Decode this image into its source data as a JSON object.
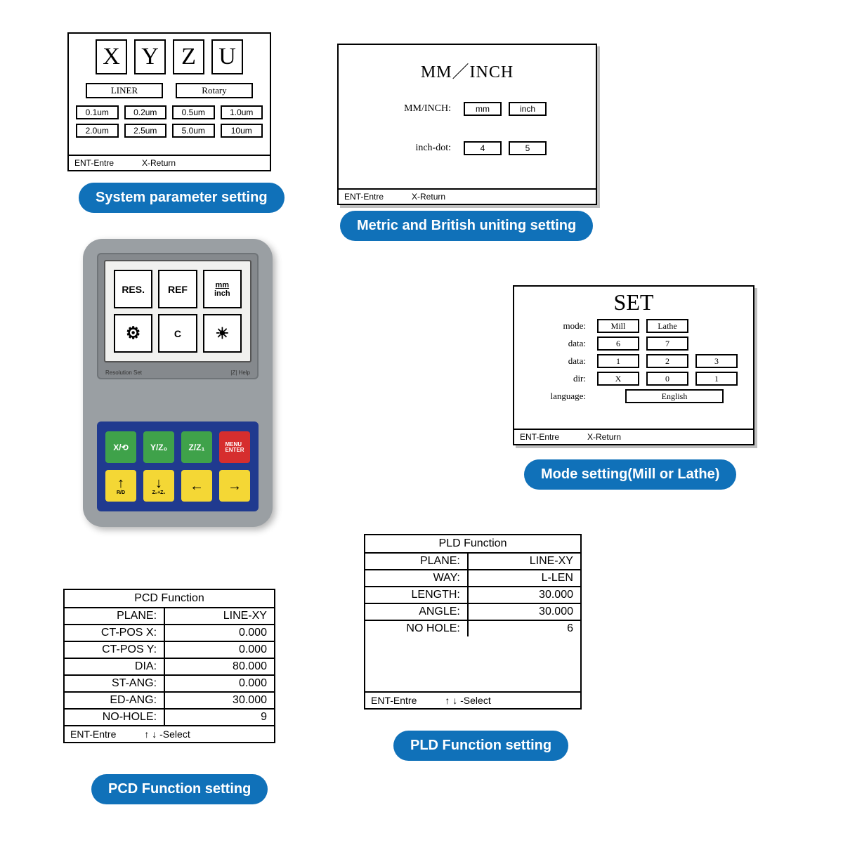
{
  "colors": {
    "caption_bg": "#1071b9",
    "caption_fg": "#ffffff"
  },
  "panel1": {
    "axes": [
      "X",
      "Y",
      "Z",
      "U"
    ],
    "types": [
      "LINER",
      "Rotary"
    ],
    "resolutions": [
      "0.1um",
      "0.2um",
      "0.5um",
      "1.0um",
      "2.0um",
      "2.5um",
      "5.0um",
      "10um"
    ],
    "footer_left": "ENT-Entre",
    "footer_right": "X-Return",
    "caption": "System parameter setting"
  },
  "panel2": {
    "title": "MM／INCH",
    "row1_label": "MM/INCH:",
    "row1_opts": [
      "mm",
      "inch"
    ],
    "row2_label": "inch-dot:",
    "row2_opts": [
      "4",
      "5"
    ],
    "footer_left": "ENT-Entre",
    "footer_right": "X-Return",
    "caption": "Metric and British uniting setting"
  },
  "device": {
    "screen_buttons": [
      "RES.",
      "REF",
      "mm\ninch",
      "gear",
      "C",
      "sun"
    ],
    "screen_foot_left": "Resolution Set",
    "screen_foot_right": "|Z| Help",
    "keys_row1": [
      "X/⟲",
      "Y/Z₀",
      "Z/Z₁",
      "MENU\nENTER"
    ],
    "keys_row2": [
      "↑",
      "↓",
      "←",
      "→"
    ],
    "key_sub1": [
      "R/D",
      "Z₀+Z₁",
      "",
      ""
    ]
  },
  "panel3": {
    "title": "SET",
    "rows": [
      {
        "label": "mode:",
        "boxes": [
          "Mill",
          "Lathe"
        ]
      },
      {
        "label": "data:",
        "boxes": [
          "6",
          "7"
        ]
      },
      {
        "label": "data:",
        "boxes": [
          "1",
          "2",
          "3"
        ]
      },
      {
        "label": "dir:",
        "boxes": [
          "X",
          "0",
          "1"
        ]
      },
      {
        "label": "language:",
        "boxes": [
          "English"
        ],
        "wide": true
      }
    ],
    "footer_left": "ENT-Entre",
    "footer_right": "X-Return",
    "caption": "Mode setting(Mill or Lathe)"
  },
  "pcd": {
    "title": "PCD Function",
    "rows": [
      {
        "l": "PLANE:",
        "r": "LINE-XY"
      },
      {
        "l": "CT-POS X:",
        "r": "0.000"
      },
      {
        "l": "CT-POS Y:",
        "r": "0.000"
      },
      {
        "l": "DIA:",
        "r": "80.000"
      },
      {
        "l": "ST-ANG:",
        "r": "0.000"
      },
      {
        "l": "ED-ANG:",
        "r": "30.000"
      },
      {
        "l": "NO-HOLE:",
        "r": "9"
      }
    ],
    "footer_left": "ENT-Entre",
    "footer_right": "↑ ↓  -Select",
    "caption": "PCD Function setting"
  },
  "pld": {
    "title": "PLD Function",
    "rows": [
      {
        "l": "PLANE:",
        "r": "LINE-XY"
      },
      {
        "l": "WAY:",
        "r": "L-LEN"
      },
      {
        "l": "LENGTH:",
        "r": "30.000"
      },
      {
        "l": "ANGLE:",
        "r": "30.000"
      },
      {
        "l": "NO HOLE:",
        "r": "6"
      }
    ],
    "footer_left": "ENT-Entre",
    "footer_right": "↑ ↓  -Select",
    "caption": "PLD Function setting"
  }
}
